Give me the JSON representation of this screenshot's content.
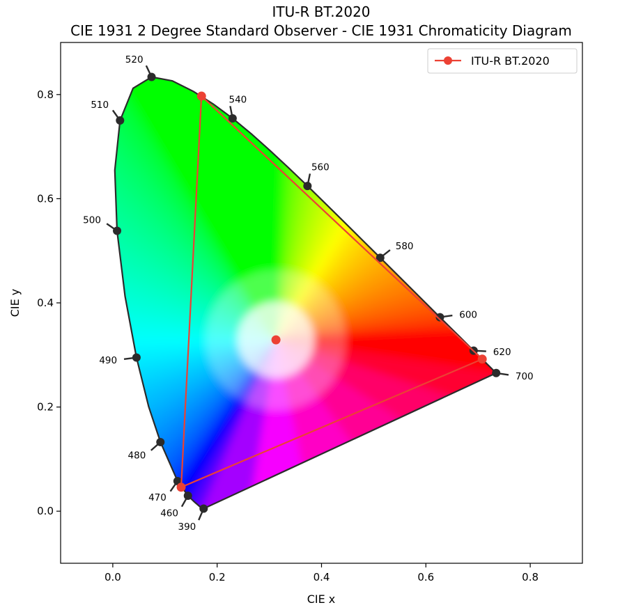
{
  "chart_data": {
    "type": "scatter",
    "title": "ITU-R BT.2020",
    "subtitle": "CIE 1931 2 Degree Standard Observer - CIE 1931 Chromaticity Diagram",
    "xlabel": "CIE x",
    "ylabel": "CIE y",
    "xlim": [
      -0.1,
      0.9
    ],
    "ylim": [
      -0.1,
      0.9
    ],
    "x_ticks": [
      "0.0",
      "0.2",
      "0.4",
      "0.6",
      "0.8"
    ],
    "y_ticks": [
      "0.0",
      "0.2",
      "0.4",
      "0.6",
      "0.8"
    ],
    "x_tick_values": [
      0.0,
      0.2,
      0.4,
      0.6,
      0.8
    ],
    "y_tick_values": [
      0.0,
      0.2,
      0.4,
      0.6,
      0.8
    ],
    "legend_position": "upper right",
    "spectral_locus": [
      [
        0.1741,
        0.005
      ],
      [
        0.1714,
        0.0051
      ],
      [
        0.1689,
        0.0069
      ],
      [
        0.1644,
        0.0109
      ],
      [
        0.1566,
        0.0177
      ],
      [
        0.144,
        0.0297
      ],
      [
        0.1241,
        0.0578
      ],
      [
        0.0913,
        0.1327
      ],
      [
        0.0687,
        0.2007
      ],
      [
        0.0454,
        0.295
      ],
      [
        0.0235,
        0.4127
      ],
      [
        0.0082,
        0.5384
      ],
      [
        0.0039,
        0.6548
      ],
      [
        0.0139,
        0.7502
      ],
      [
        0.0389,
        0.812
      ],
      [
        0.0743,
        0.8338
      ],
      [
        0.1142,
        0.8262
      ],
      [
        0.1547,
        0.8059
      ],
      [
        0.1929,
        0.7816
      ],
      [
        0.2296,
        0.7543
      ],
      [
        0.2658,
        0.7243
      ],
      [
        0.3016,
        0.6923
      ],
      [
        0.3373,
        0.6589
      ],
      [
        0.3731,
        0.6245
      ],
      [
        0.4087,
        0.5896
      ],
      [
        0.4441,
        0.5547
      ],
      [
        0.4788,
        0.5202
      ],
      [
        0.5125,
        0.4866
      ],
      [
        0.5448,
        0.4544
      ],
      [
        0.5752,
        0.4242
      ],
      [
        0.6029,
        0.3965
      ],
      [
        0.627,
        0.3725
      ],
      [
        0.6482,
        0.3514
      ],
      [
        0.6658,
        0.334
      ],
      [
        0.6801,
        0.3197
      ],
      [
        0.6915,
        0.3083
      ],
      [
        0.7006,
        0.2993
      ],
      [
        0.7079,
        0.292
      ],
      [
        0.714,
        0.2859
      ],
      [
        0.719,
        0.2809
      ],
      [
        0.723,
        0.277
      ],
      [
        0.7347,
        0.2653
      ]
    ],
    "wavelength_markers": [
      {
        "label": "390",
        "x": 0.1741,
        "y": 0.005,
        "side": "left"
      },
      {
        "label": "460",
        "x": 0.144,
        "y": 0.0297,
        "side": "left"
      },
      {
        "label": "470",
        "x": 0.1241,
        "y": 0.0578,
        "side": "left"
      },
      {
        "label": "480",
        "x": 0.0913,
        "y": 0.1327,
        "side": "left"
      },
      {
        "label": "490",
        "x": 0.0454,
        "y": 0.295,
        "side": "left"
      },
      {
        "label": "500",
        "x": 0.0082,
        "y": 0.5384,
        "side": "left"
      },
      {
        "label": "510",
        "x": 0.0139,
        "y": 0.7502,
        "side": "left"
      },
      {
        "label": "520",
        "x": 0.0743,
        "y": 0.8338,
        "side": "left"
      },
      {
        "label": "540",
        "x": 0.2296,
        "y": 0.7543,
        "side": "right"
      },
      {
        "label": "560",
        "x": 0.3731,
        "y": 0.6245,
        "side": "right"
      },
      {
        "label": "580",
        "x": 0.5125,
        "y": 0.4866,
        "side": "right"
      },
      {
        "label": "600",
        "x": 0.627,
        "y": 0.3725,
        "side": "right"
      },
      {
        "label": "620",
        "x": 0.6915,
        "y": 0.3083,
        "side": "right"
      },
      {
        "label": "700",
        "x": 0.7347,
        "y": 0.2653,
        "side": "right"
      }
    ],
    "series": [
      {
        "name": "ITU-R BT.2020",
        "color": "#ec4134",
        "points": [
          [
            0.708,
            0.292
          ],
          [
            0.17,
            0.797
          ],
          [
            0.131,
            0.046
          ],
          [
            0.708,
            0.292
          ]
        ],
        "whitepoint": [
          0.3127,
          0.329
        ]
      }
    ]
  },
  "colors": {
    "primary_series": "#ec4134",
    "locus_outline": "#2b2b2b",
    "markers": "#2b2b2b"
  }
}
